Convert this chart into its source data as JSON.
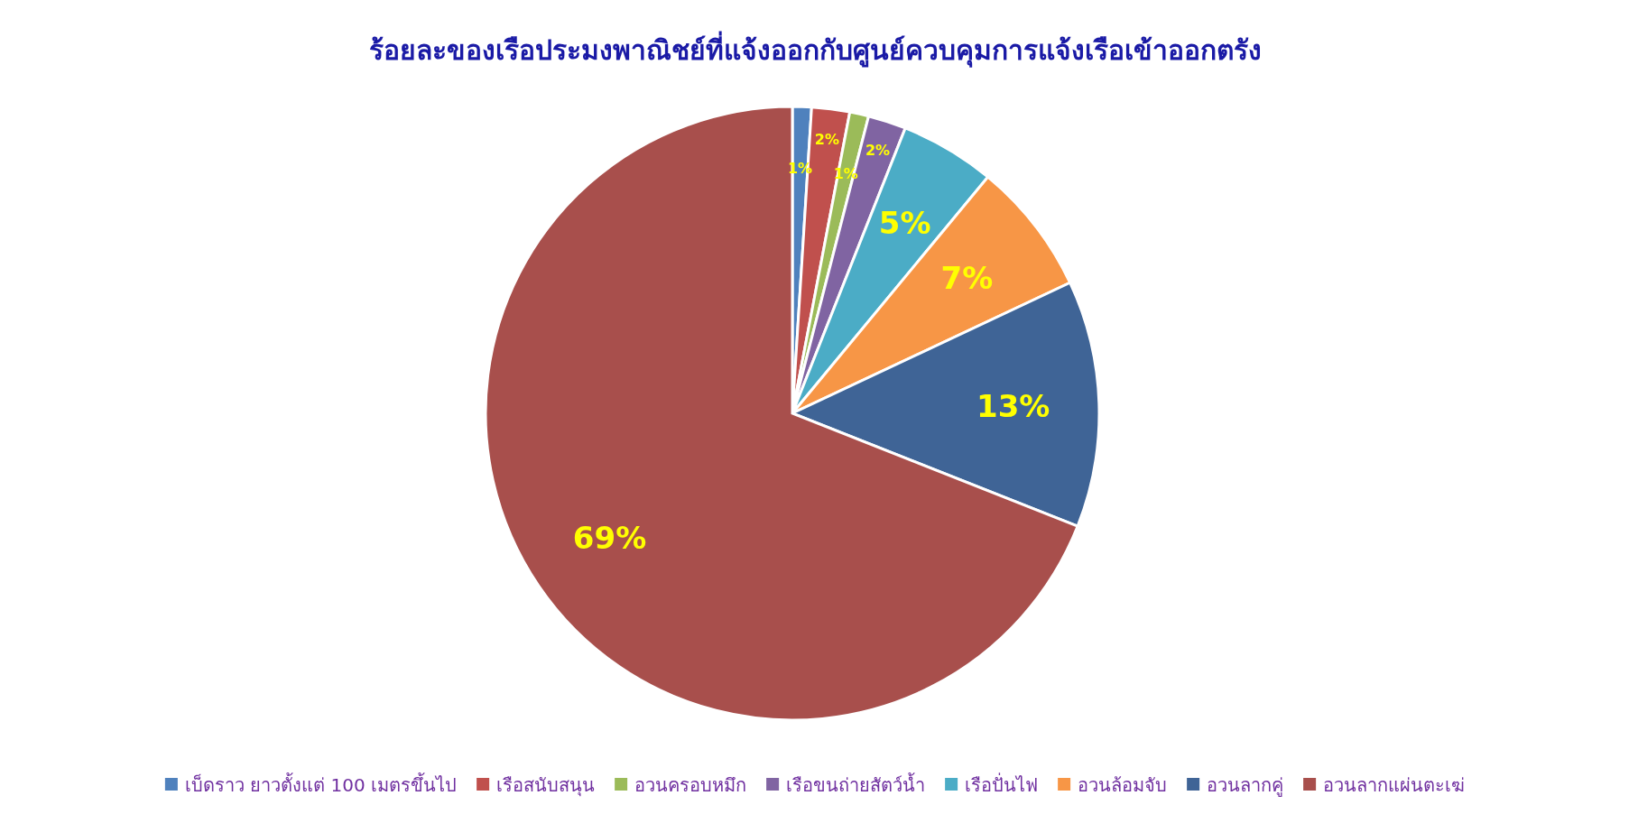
{
  "chart_data": {
    "type": "pie",
    "title": "ร้อยละของเรือประมงพาณิชย์ที่แจ้งออกกับศูนย์ควบคุมการแจ้งเรือเข้าออกตรัง",
    "categories": [
      "เบ็ดราว ยาวตั้งแต่ 100 เมตรขึ้นไป",
      "เรือสนับสนุน",
      "อวนครอบหมึก",
      "เรือขนถ่ายสัตว์น้ำ",
      "เรือปั่นไฟ",
      "อวนล้อมจับ",
      "อวนลากคู่",
      "อวนลากแผ่นตะเฆ่"
    ],
    "values": [
      1,
      2,
      1,
      2,
      5,
      7,
      13,
      69
    ],
    "colors": [
      "#4f81bd",
      "#c0504d",
      "#9bbb59",
      "#8064a2",
      "#4bacc6",
      "#f79646",
      "#3f6496",
      "#a84f4c"
    ],
    "value_labels": [
      "1%",
      "2%",
      "1%",
      "2%",
      "5%",
      "7%",
      "13%",
      "69%"
    ],
    "legend": "bottom"
  }
}
